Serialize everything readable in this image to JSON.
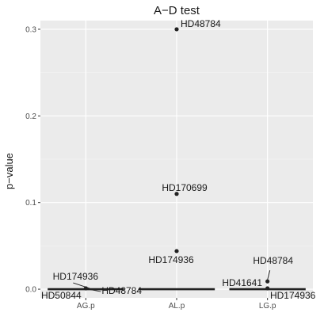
{
  "chart_data": {
    "type": "scatter",
    "title": "A−D test",
    "xlabel": "",
    "ylabel": "p−value",
    "categories": [
      "AG.p",
      "AL.p",
      "LG.p"
    ],
    "ylim": [
      -0.01,
      0.31
    ],
    "yticks": [
      0.0,
      0.1,
      0.2,
      0.3
    ],
    "ytick_labels": [
      "0.0",
      "0.1",
      "0.2",
      "0.3"
    ],
    "grid": true,
    "colors": {
      "panel": "#ebebeb",
      "grid_major": "#ffffff",
      "points": "#222222",
      "text": "#1a1a1a",
      "tick_text": "#4d4d4d"
    },
    "points": [
      {
        "category": "AG.p",
        "value": 0.001
      },
      {
        "category": "AL.p",
        "value": 0.3,
        "label": "HD48784"
      },
      {
        "category": "AL.p",
        "value": 0.11,
        "label": "HD170699"
      },
      {
        "category": "AL.p",
        "value": 0.044,
        "label": "HD174936"
      },
      {
        "category": "LG.p",
        "value": 0.009,
        "label": "HD48784"
      },
      {
        "category": "LG.p",
        "value": 0.001
      }
    ],
    "near_zero_labels": [
      {
        "category": "AG.p",
        "label": "HD174936",
        "anchor": "upper-left"
      },
      {
        "category": "AG.p",
        "label": "HD48784",
        "anchor": "right"
      },
      {
        "category": "AG.p",
        "label": "HD50844",
        "anchor": "lower-left"
      },
      {
        "category": "LG.p",
        "label": "HD41641",
        "anchor": "left"
      },
      {
        "category": "LG.p",
        "label": "HD174936",
        "anchor": "lower-right"
      }
    ],
    "zero_bar_categories": [
      "AG.p",
      "AL.p",
      "LG.p"
    ]
  }
}
